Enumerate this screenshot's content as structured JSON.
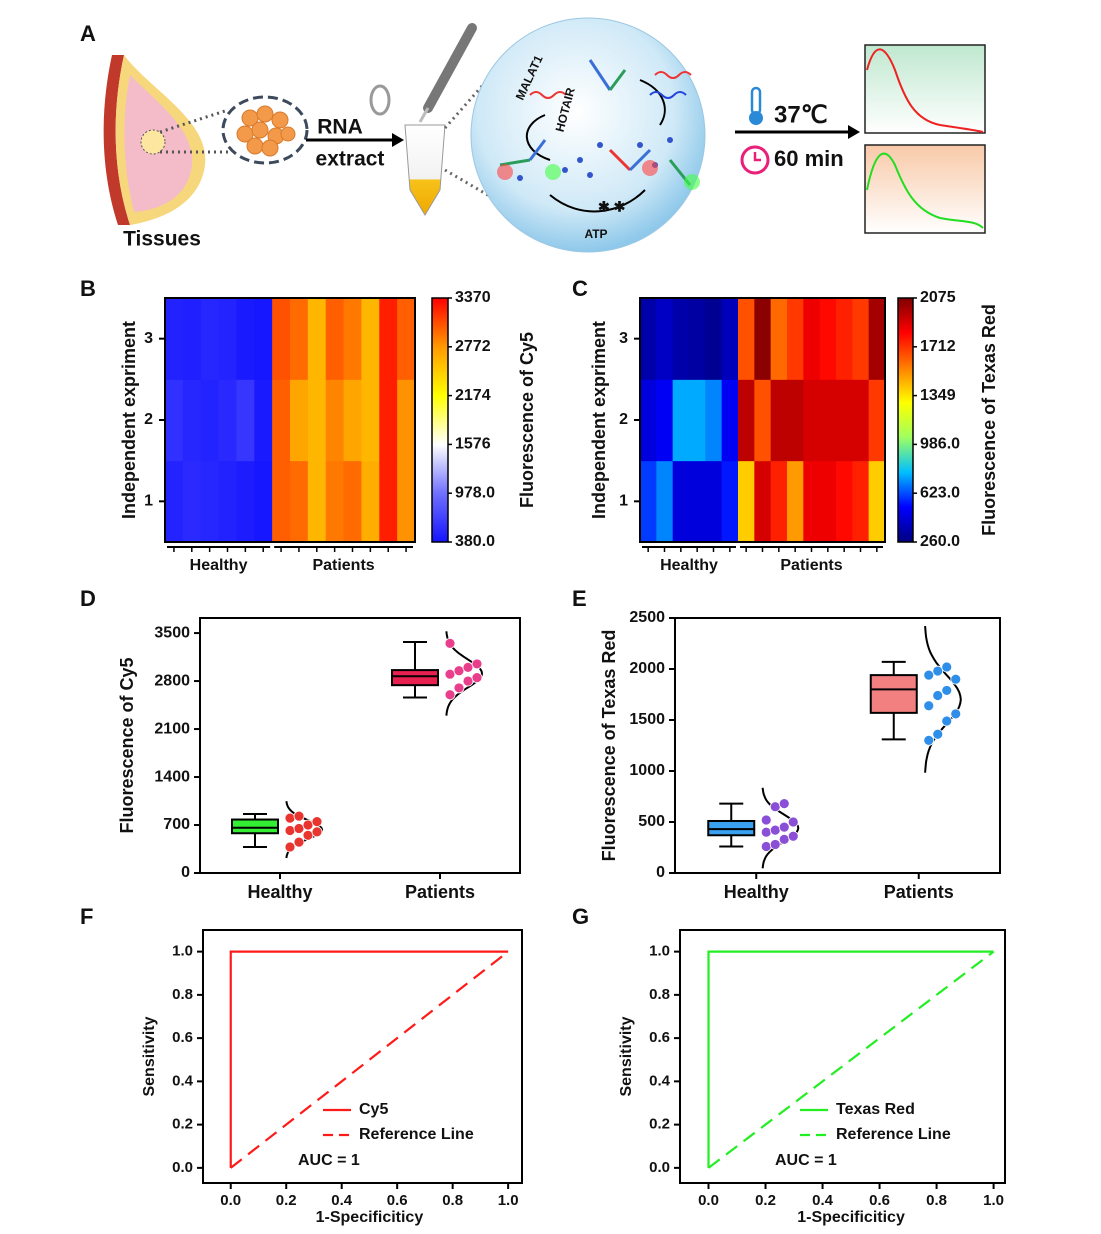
{
  "panel_labels": [
    "A",
    "B",
    "C",
    "D",
    "E",
    "F",
    "G"
  ],
  "diagram": {
    "tissues": "Tissues",
    "step1": [
      "RNA",
      "extract"
    ],
    "targets": [
      "MALAT1",
      "HOTAIR"
    ],
    "atp": "ATP",
    "temperature": "37℃",
    "time": "60 min"
  },
  "chart_data": [
    {
      "type": "heatmap",
      "ylabel": "Independent expriment",
      "colorbar_label": "Fluorescence of Cy5",
      "y": [
        1,
        2,
        3
      ],
      "ylim": [
        0.5,
        3.5
      ],
      "yticks": [
        1,
        2,
        3
      ],
      "categories": [
        null,
        null,
        null,
        null,
        null,
        null,
        null,
        null,
        null,
        null,
        null,
        null,
        null,
        null
      ],
      "groups": [
        {
          "label": "Healthy",
          "first": 0,
          "last": 5
        },
        {
          "label": "Patients",
          "first": 6,
          "last": 13
        }
      ],
      "z": [
        [
          480,
          520,
          500,
          470,
          430,
          400,
          3000,
          2950,
          2600,
          2900,
          2950,
          2650,
          3250,
          2800
        ],
        [
          560,
          500,
          480,
          510,
          600,
          420,
          3000,
          2700,
          2600,
          2850,
          2700,
          2600,
          3250,
          2800
        ],
        [
          470,
          450,
          500,
          480,
          420,
          400,
          3050,
          2950,
          2600,
          3000,
          2900,
          2600,
          3250,
          3000
        ]
      ],
      "zlim": [
        380,
        3370
      ],
      "zticks": [
        {
          "value": 380,
          "label": "380.0"
        },
        {
          "value": 978,
          "label": "978.0"
        },
        1576,
        2174,
        2772,
        3370
      ],
      "colormap": [
        "#1414ff",
        "#7070ff",
        "#ffffff",
        "#ffff00",
        "#ff9900",
        "#ff0000"
      ]
    },
    {
      "type": "heatmap",
      "ylabel": "Independent expriment",
      "colorbar_label": "Fluorescence of Texas Red",
      "y": [
        1,
        2,
        3
      ],
      "ylim": [
        0.5,
        3.5
      ],
      "yticks": [
        1,
        2,
        3
      ],
      "categories": [
        null,
        null,
        null,
        null,
        null,
        null,
        null,
        null,
        null,
        null,
        null,
        null,
        null,
        null,
        null
      ],
      "groups": [
        {
          "label": "Healthy",
          "first": 0,
          "last": 5
        },
        {
          "label": "Patients",
          "first": 6,
          "last": 14
        }
      ],
      "z": [
        [
          600,
          700,
          450,
          450,
          450,
          550,
          1400,
          1900,
          1750,
          1500,
          1850,
          1850,
          1800,
          1750,
          1400
        ],
        [
          450,
          500,
          750,
          750,
          700,
          500,
          1950,
          1650,
          1950,
          1950,
          1900,
          1900,
          1900,
          1900,
          1700
        ],
        [
          350,
          400,
          350,
          330,
          300,
          380,
          1650,
          2050,
          1600,
          1700,
          1850,
          1800,
          1750,
          1700,
          2000
        ]
      ],
      "zlim": [
        260,
        2075
      ],
      "zticks": [
        {
          "value": 260,
          "label": "260.0"
        },
        {
          "value": 623,
          "label": "623.0"
        },
        {
          "value": 986,
          "label": "986.0"
        },
        1349,
        1712,
        2075
      ],
      "colormap": [
        "#00007f",
        "#0000ff",
        "#00bfff",
        "#9fff5f",
        "#ffff00",
        "#ff7f00",
        "#ff0000",
        "#7f0000"
      ]
    },
    {
      "type": "box",
      "ylabel": "Fluorescence of Cy5",
      "categories": [
        "Healthy",
        "Patients"
      ],
      "ylim": [
        0,
        3720
      ],
      "yticks": [
        0,
        700,
        1400,
        2100,
        2800,
        3500
      ],
      "boxes": [
        {
          "min": 380,
          "q1": 580,
          "median": 660,
          "q3": 780,
          "max": 860,
          "color": "#33ee33",
          "point_color": "#e8352f",
          "points": [
            380,
            450,
            550,
            600,
            620,
            650,
            700,
            750,
            800,
            830
          ]
        },
        {
          "min": 2560,
          "q1": 2740,
          "median": 2870,
          "q3": 2960,
          "max": 3370,
          "color": "#e8204f",
          "point_color": "#e83e8c",
          "points": [
            2600,
            2700,
            2800,
            2850,
            2900,
            2950,
            3000,
            3050,
            3350
          ]
        }
      ]
    },
    {
      "type": "box",
      "ylabel": "Fluorescence of Texas Red",
      "categories": [
        "Healthy",
        "Patients"
      ],
      "ylim": [
        0,
        2500
      ],
      "yticks": [
        0,
        500,
        1000,
        1500,
        2000,
        2500
      ],
      "boxes": [
        {
          "min": 260,
          "q1": 370,
          "median": 430,
          "q3": 510,
          "max": 680,
          "color": "#3aa0f0",
          "point_color": "#8a4fd6",
          "points": [
            260,
            280,
            330,
            360,
            400,
            420,
            450,
            500,
            520,
            650,
            680
          ]
        },
        {
          "min": 1310,
          "q1": 1570,
          "median": 1800,
          "q3": 1940,
          "max": 2070,
          "color": "#f28080",
          "point_color": "#2f8fe8",
          "points": [
            1300,
            1360,
            1490,
            1560,
            1640,
            1740,
            1790,
            1900,
            1940,
            1980,
            2020
          ]
        }
      ]
    },
    {
      "type": "line",
      "xlabel": "1-Specificiticy",
      "ylabel": "Sensitivity",
      "xlim": [
        -0.1,
        1.05
      ],
      "ylim": [
        -0.07,
        1.1
      ],
      "xticks": [
        {
          "value": 0,
          "label": "0.0"
        },
        0.2,
        0.4,
        0.6,
        0.8,
        {
          "value": 1,
          "label": "1.0"
        }
      ],
      "yticks": [
        {
          "value": 0,
          "label": "0.0"
        },
        0.2,
        0.4,
        0.6,
        0.8,
        {
          "value": 1,
          "label": "1.0"
        }
      ],
      "series": [
        {
          "name": "Cy5",
          "color": "#ff1a1a",
          "dashed": false,
          "x": [
            0,
            0,
            1
          ],
          "values": [
            0,
            1,
            1
          ]
        },
        {
          "name": "Reference Line",
          "color": "#ff1a1a",
          "dashed": true,
          "x": [
            0,
            1
          ],
          "values": [
            0,
            1
          ]
        }
      ],
      "annotation": "AUC = 1"
    },
    {
      "type": "line",
      "xlabel": "1-Specificiticy",
      "ylabel": "Sensitivity",
      "xlim": [
        -0.1,
        1.04
      ],
      "ylim": [
        -0.07,
        1.1
      ],
      "xticks": [
        {
          "value": 0,
          "label": "0.0"
        },
        0.2,
        0.4,
        0.6,
        0.8,
        {
          "value": 1,
          "label": "1.0"
        }
      ],
      "yticks": [
        {
          "value": 0,
          "label": "0.0"
        },
        0.2,
        0.4,
        0.6,
        0.8,
        {
          "value": 1,
          "label": "1.0"
        }
      ],
      "series": [
        {
          "name": "Texas Red",
          "color": "#22ee22",
          "dashed": false,
          "x": [
            0,
            0,
            1
          ],
          "values": [
            0,
            1,
            1
          ]
        },
        {
          "name": "Reference Line",
          "color": "#22ee22",
          "dashed": true,
          "x": [
            0,
            1
          ],
          "values": [
            0,
            1
          ]
        }
      ],
      "annotation": "AUC = 1"
    }
  ]
}
